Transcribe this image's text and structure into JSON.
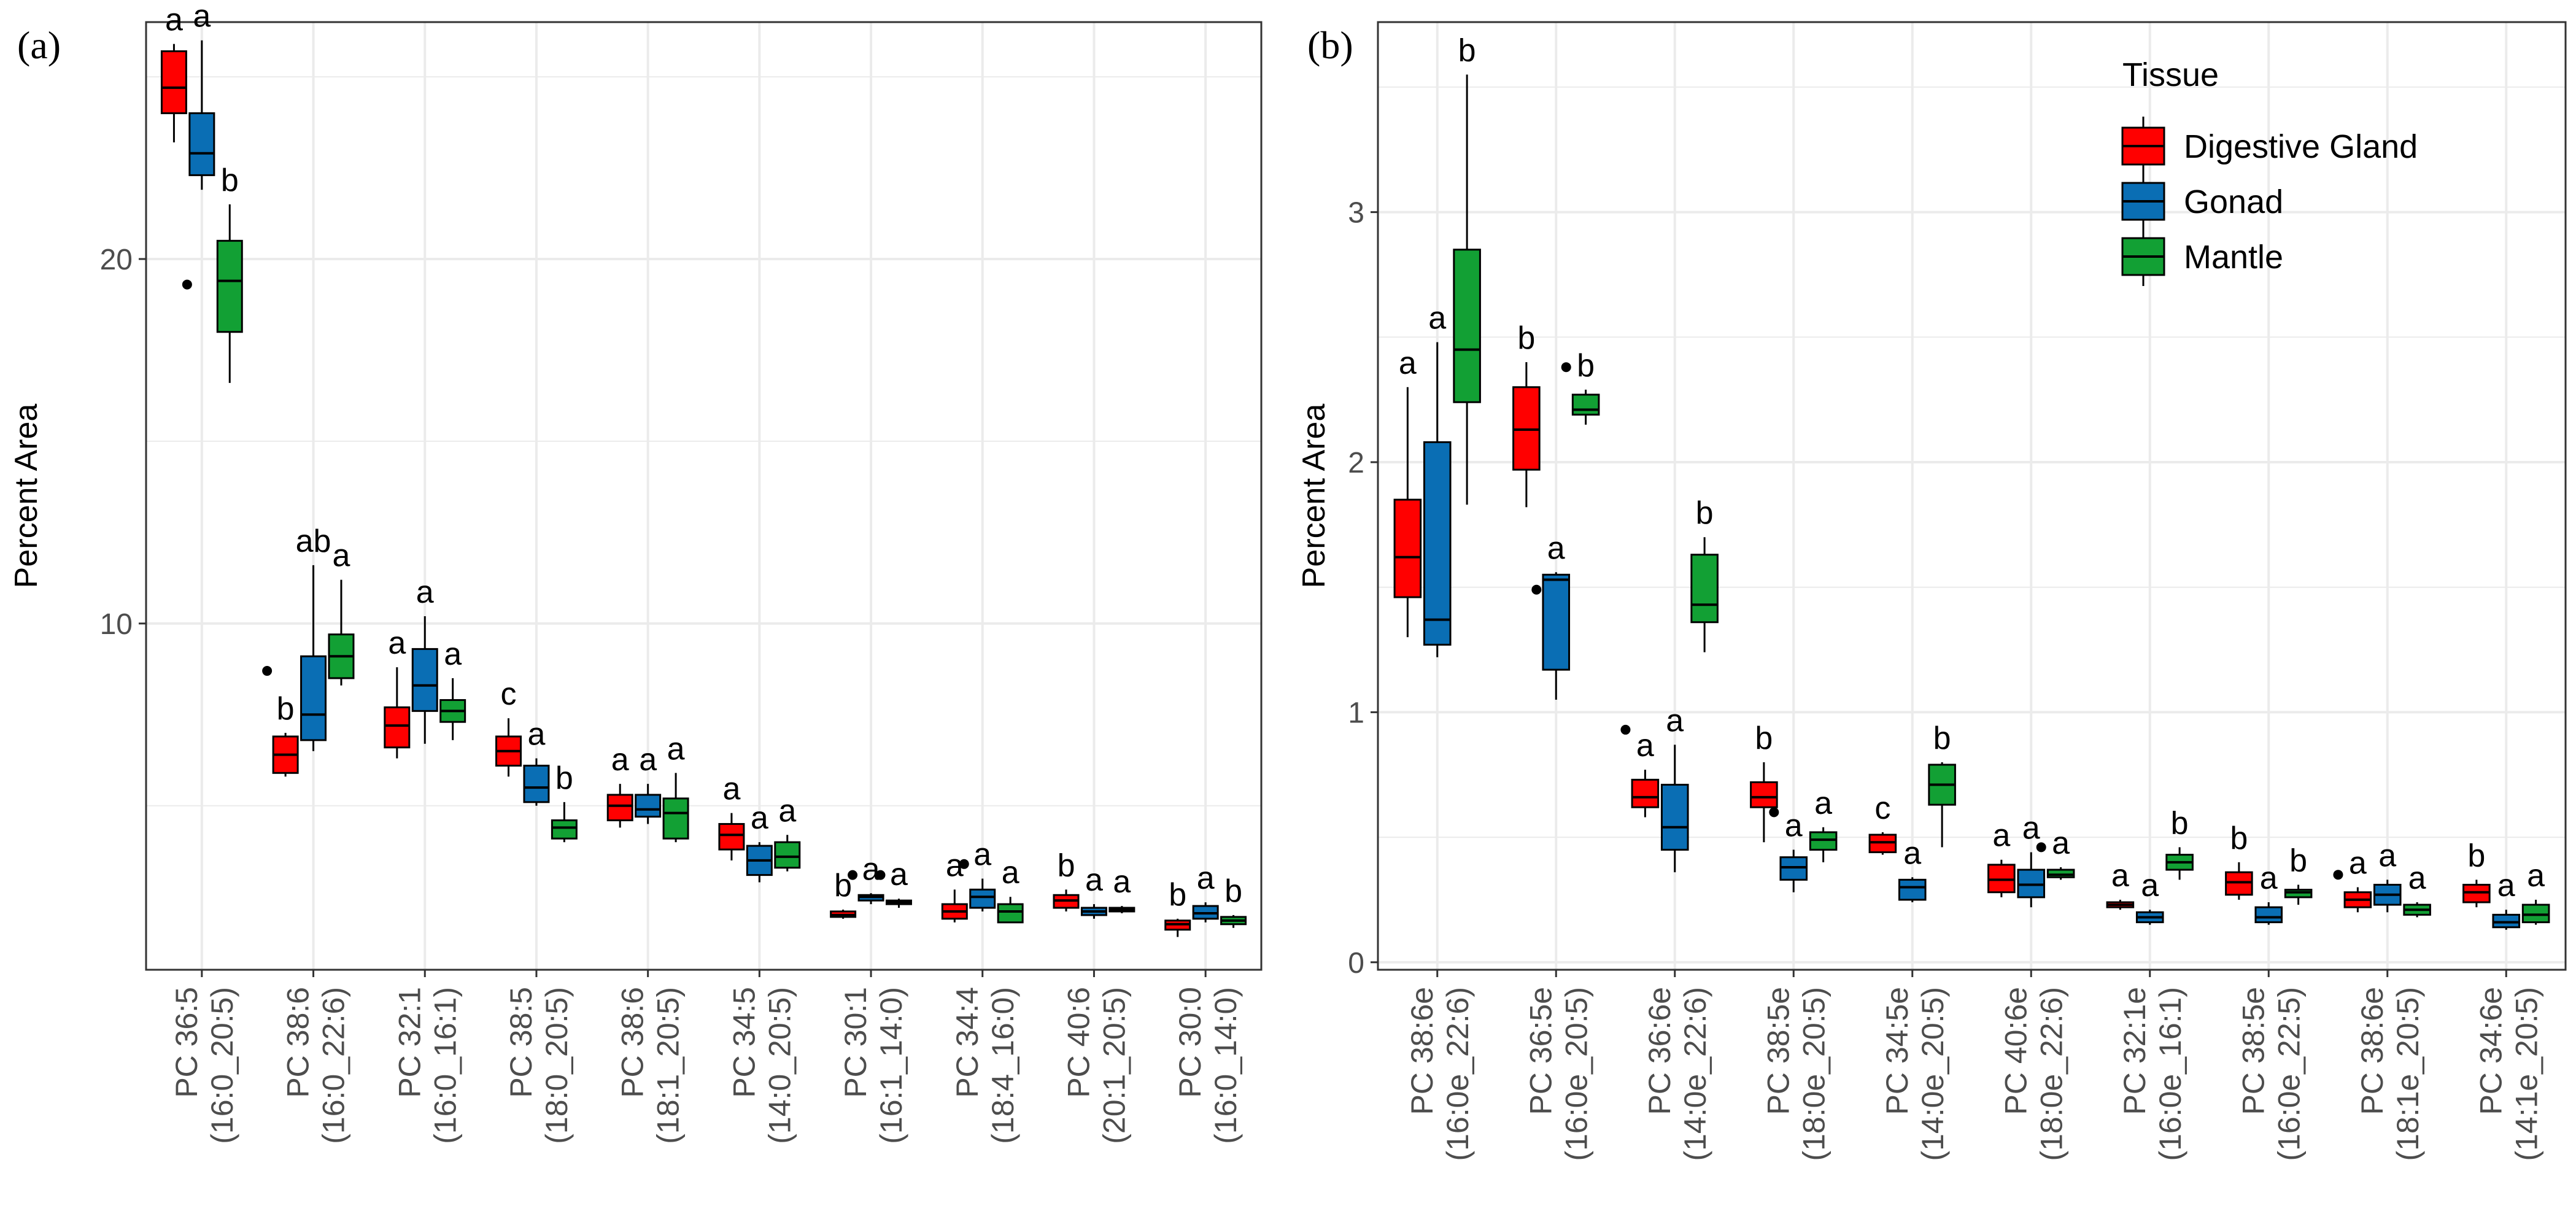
{
  "chart_data": [
    {
      "panel": "(a)",
      "type": "box",
      "ylabel": "Percent Area",
      "xlabel": "",
      "ylim": [
        0.5,
        26.5
      ],
      "yticks": [
        10,
        20
      ],
      "grid": true,
      "categories": [
        [
          "PC 36:5",
          "(16:0_20:5)"
        ],
        [
          "PC 38:6",
          "(16:0_22:6)"
        ],
        [
          "PC 32:1",
          "(16:0_16:1)"
        ],
        [
          "PC 38:5",
          "(18:0_20:5)"
        ],
        [
          "PC 38:6",
          "(18:1_20:5)"
        ],
        [
          "PC 34:5",
          "(14:0_20:5)"
        ],
        [
          "PC 30:1",
          "(16:1_14:0)"
        ],
        [
          "PC 34:4",
          "(18:4_16:0)"
        ],
        [
          "PC 40:6",
          "(20:1_20:5)"
        ],
        [
          "PC 30:0",
          "(16:0_14:0)"
        ]
      ],
      "series": [
        {
          "name": "Digestive Gland",
          "boxes": [
            {
              "min": 23.2,
              "q1": 24.0,
              "median": 24.7,
              "q3": 25.7,
              "max": 25.9,
              "outliers": [],
              "letter": "a"
            },
            {
              "min": 5.8,
              "q1": 5.9,
              "median": 6.4,
              "q3": 6.9,
              "max": 7.0,
              "outliers": [
                8.7
              ],
              "letter": "b"
            },
            {
              "min": 6.3,
              "q1": 6.6,
              "median": 7.2,
              "q3": 7.7,
              "max": 8.8,
              "outliers": [],
              "letter": "a"
            },
            {
              "min": 5.8,
              "q1": 6.1,
              "median": 6.5,
              "q3": 6.9,
              "max": 7.4,
              "outliers": [],
              "letter": "c"
            },
            {
              "min": 4.4,
              "q1": 4.6,
              "median": 5.0,
              "q3": 5.3,
              "max": 5.6,
              "outliers": [],
              "letter": "a"
            },
            {
              "min": 3.5,
              "q1": 3.8,
              "median": 4.2,
              "q3": 4.5,
              "max": 4.8,
              "outliers": [],
              "letter": "a"
            },
            {
              "min": 1.9,
              "q1": 1.95,
              "median": 2.0,
              "q3": 2.1,
              "max": 2.15,
              "outliers": [],
              "letter": "b"
            },
            {
              "min": 1.8,
              "q1": 1.9,
              "median": 2.1,
              "q3": 2.3,
              "max": 2.7,
              "outliers": [],
              "letter": "a"
            },
            {
              "min": 2.1,
              "q1": 2.2,
              "median": 2.4,
              "q3": 2.55,
              "max": 2.7,
              "outliers": [],
              "letter": "b"
            },
            {
              "min": 1.4,
              "q1": 1.6,
              "median": 1.75,
              "q3": 1.85,
              "max": 1.9,
              "outliers": [],
              "letter": "b"
            }
          ]
        },
        {
          "name": "Gonad",
          "boxes": [
            {
              "min": 21.9,
              "q1": 22.3,
              "median": 22.9,
              "q3": 24.0,
              "max": 26.0,
              "outliers": [
                19.3
              ],
              "letter": "a"
            },
            {
              "min": 6.5,
              "q1": 6.8,
              "median": 7.5,
              "q3": 9.1,
              "max": 11.6,
              "outliers": [],
              "letter": "ab"
            },
            {
              "min": 6.7,
              "q1": 7.6,
              "median": 8.3,
              "q3": 9.3,
              "max": 10.2,
              "outliers": [],
              "letter": "a"
            },
            {
              "min": 5.0,
              "q1": 5.1,
              "median": 5.5,
              "q3": 6.1,
              "max": 6.3,
              "outliers": [],
              "letter": "a"
            },
            {
              "min": 4.5,
              "q1": 4.7,
              "median": 4.9,
              "q3": 5.3,
              "max": 5.6,
              "outliers": [],
              "letter": "a"
            },
            {
              "min": 2.9,
              "q1": 3.1,
              "median": 3.5,
              "q3": 3.9,
              "max": 4.0,
              "outliers": [],
              "letter": "a"
            },
            {
              "min": 2.3,
              "q1": 2.4,
              "median": 2.5,
              "q3": 2.55,
              "max": 2.6,
              "outliers": [
                3.1
              ],
              "letter": "a"
            },
            {
              "min": 2.1,
              "q1": 2.2,
              "median": 2.5,
              "q3": 2.7,
              "max": 3.0,
              "outliers": [
                3.4
              ],
              "letter": "a"
            },
            {
              "min": 1.9,
              "q1": 2.0,
              "median": 2.1,
              "q3": 2.2,
              "max": 2.3,
              "outliers": [],
              "letter": "a"
            },
            {
              "min": 1.8,
              "q1": 1.9,
              "median": 2.05,
              "q3": 2.25,
              "max": 2.35,
              "outliers": [],
              "letter": "a"
            }
          ]
        },
        {
          "name": "Mantle",
          "boxes": [
            {
              "min": 16.6,
              "q1": 18.0,
              "median": 19.4,
              "q3": 20.5,
              "max": 21.5,
              "outliers": [],
              "letter": "b"
            },
            {
              "min": 8.3,
              "q1": 8.5,
              "median": 9.1,
              "q3": 9.7,
              "max": 11.2,
              "outliers": [],
              "letter": "a"
            },
            {
              "min": 6.8,
              "q1": 7.3,
              "median": 7.6,
              "q3": 7.9,
              "max": 8.5,
              "outliers": [],
              "letter": "a"
            },
            {
              "min": 4.0,
              "q1": 4.1,
              "median": 4.4,
              "q3": 4.6,
              "max": 5.1,
              "outliers": [],
              "letter": "b"
            },
            {
              "min": 4.0,
              "q1": 4.1,
              "median": 4.8,
              "q3": 5.2,
              "max": 5.9,
              "outliers": [],
              "letter": "a"
            },
            {
              "min": 3.2,
              "q1": 3.3,
              "median": 3.6,
              "q3": 4.0,
              "max": 4.2,
              "outliers": [],
              "letter": "a"
            },
            {
              "min": 2.2,
              "q1": 2.3,
              "median": 2.35,
              "q3": 2.4,
              "max": 2.45,
              "outliers": [
                3.1
              ],
              "letter": "a"
            },
            {
              "min": 1.8,
              "q1": 1.8,
              "median": 2.1,
              "q3": 2.3,
              "max": 2.5,
              "outliers": [],
              "letter": "a"
            },
            {
              "min": 2.05,
              "q1": 2.1,
              "median": 2.15,
              "q3": 2.2,
              "max": 2.25,
              "outliers": [],
              "letter": "a"
            },
            {
              "min": 1.65,
              "q1": 1.75,
              "median": 1.85,
              "q3": 1.95,
              "max": 2.0,
              "outliers": [],
              "letter": "b"
            }
          ]
        }
      ]
    },
    {
      "panel": "(b)",
      "type": "box",
      "ylabel": "Percent Area",
      "xlabel": "",
      "ylim": [
        -0.03,
        3.76
      ],
      "yticks": [
        0,
        1,
        2,
        3
      ],
      "grid": true,
      "legend": {
        "title": "Tissue",
        "position": "top-right"
      },
      "categories": [
        [
          "PC 38:6e",
          "(16:0e_22:6)"
        ],
        [
          "PC 36:5e",
          "(16:0e_20:5)"
        ],
        [
          "PC 36:6e",
          "(14:0e_22:6)"
        ],
        [
          "PC 38:5e",
          "(18:0e_20:5)"
        ],
        [
          "PC 34:5e",
          "(14:0e_20:5)"
        ],
        [
          "PC 40:6e",
          "(18:0e_22:6)"
        ],
        [
          "PC 32:1e",
          "(16:0e_16:1)"
        ],
        [
          "PC 38:5e",
          "(16:0e_22:5)"
        ],
        [
          "PC 38:6e",
          "(18:1e_20:5)"
        ],
        [
          "PC 34:6e",
          "(14:1e_20:5)"
        ]
      ],
      "series": [
        {
          "name": "Digestive Gland",
          "boxes": [
            {
              "min": 1.3,
              "q1": 1.46,
              "median": 1.62,
              "q3": 1.85,
              "max": 2.3,
              "outliers": [],
              "letter": "a"
            },
            {
              "min": 1.82,
              "q1": 1.97,
              "median": 2.13,
              "q3": 2.3,
              "max": 2.4,
              "outliers": [],
              "letter": "b"
            },
            {
              "min": 0.58,
              "q1": 0.62,
              "median": 0.66,
              "q3": 0.73,
              "max": 0.77,
              "outliers": [
                0.93
              ],
              "letter": "a"
            },
            {
              "min": 0.48,
              "q1": 0.62,
              "median": 0.66,
              "q3": 0.72,
              "max": 0.8,
              "outliers": [],
              "letter": "b"
            },
            {
              "min": 0.43,
              "q1": 0.44,
              "median": 0.48,
              "q3": 0.51,
              "max": 0.52,
              "outliers": [],
              "letter": "c"
            },
            {
              "min": 0.26,
              "q1": 0.28,
              "median": 0.33,
              "q3": 0.39,
              "max": 0.41,
              "outliers": [],
              "letter": "a"
            },
            {
              "min": 0.21,
              "q1": 0.22,
              "median": 0.23,
              "q3": 0.24,
              "max": 0.25,
              "outliers": [],
              "letter": "a"
            },
            {
              "min": 0.25,
              "q1": 0.27,
              "median": 0.32,
              "q3": 0.36,
              "max": 0.4,
              "outliers": [],
              "letter": "b"
            },
            {
              "min": 0.2,
              "q1": 0.22,
              "median": 0.25,
              "q3": 0.28,
              "max": 0.3,
              "outliers": [
                0.35
              ],
              "letter": "a"
            },
            {
              "min": 0.22,
              "q1": 0.24,
              "median": 0.28,
              "q3": 0.31,
              "max": 0.33,
              "outliers": [],
              "letter": "b"
            }
          ]
        },
        {
          "name": "Gonad",
          "boxes": [
            {
              "min": 1.22,
              "q1": 1.27,
              "median": 1.37,
              "q3": 2.08,
              "max": 2.48,
              "outliers": [],
              "letter": "a"
            },
            {
              "min": 1.05,
              "q1": 1.17,
              "median": 1.53,
              "q3": 1.55,
              "max": 1.56,
              "outliers": [
                1.49
              ],
              "letter": "a"
            },
            {
              "min": 0.36,
              "q1": 0.45,
              "median": 0.54,
              "q3": 0.71,
              "max": 0.87,
              "outliers": [],
              "letter": "a"
            },
            {
              "min": 0.28,
              "q1": 0.33,
              "median": 0.38,
              "q3": 0.42,
              "max": 0.45,
              "outliers": [
                0.6
              ],
              "letter": "a"
            },
            {
              "min": 0.24,
              "q1": 0.25,
              "median": 0.3,
              "q3": 0.33,
              "max": 0.34,
              "outliers": [],
              "letter": "a"
            },
            {
              "min": 0.22,
              "q1": 0.26,
              "median": 0.31,
              "q3": 0.37,
              "max": 0.44,
              "outliers": [],
              "letter": "a"
            },
            {
              "min": 0.15,
              "q1": 0.16,
              "median": 0.18,
              "q3": 0.2,
              "max": 0.21,
              "outliers": [],
              "letter": "a"
            },
            {
              "min": 0.15,
              "q1": 0.16,
              "median": 0.18,
              "q3": 0.22,
              "max": 0.24,
              "outliers": [],
              "letter": "a"
            },
            {
              "min": 0.2,
              "q1": 0.23,
              "median": 0.27,
              "q3": 0.31,
              "max": 0.33,
              "outliers": [],
              "letter": "a"
            },
            {
              "min": 0.13,
              "q1": 0.14,
              "median": 0.16,
              "q3": 0.19,
              "max": 0.21,
              "outliers": [],
              "letter": "a"
            }
          ]
        },
        {
          "name": "Mantle",
          "boxes": [
            {
              "min": 1.83,
              "q1": 2.24,
              "median": 2.45,
              "q3": 2.85,
              "max": 3.55,
              "outliers": [],
              "letter": "b"
            },
            {
              "min": 2.15,
              "q1": 2.19,
              "median": 2.21,
              "q3": 2.27,
              "max": 2.29,
              "outliers": [
                2.38
              ],
              "letter": "b"
            },
            {
              "min": 1.24,
              "q1": 1.36,
              "median": 1.43,
              "q3": 1.63,
              "max": 1.7,
              "outliers": [],
              "letter": "b"
            },
            {
              "min": 0.4,
              "q1": 0.45,
              "median": 0.49,
              "q3": 0.52,
              "max": 0.54,
              "outliers": [],
              "letter": "a"
            },
            {
              "min": 0.46,
              "q1": 0.63,
              "median": 0.71,
              "q3": 0.79,
              "max": 0.8,
              "outliers": [],
              "letter": "b"
            },
            {
              "min": 0.33,
              "q1": 0.34,
              "median": 0.35,
              "q3": 0.37,
              "max": 0.38,
              "outliers": [
                0.46
              ],
              "letter": "a"
            },
            {
              "min": 0.33,
              "q1": 0.37,
              "median": 0.4,
              "q3": 0.43,
              "max": 0.46,
              "outliers": [],
              "letter": "b"
            },
            {
              "min": 0.23,
              "q1": 0.26,
              "median": 0.28,
              "q3": 0.29,
              "max": 0.31,
              "outliers": [],
              "letter": "b"
            },
            {
              "min": 0.18,
              "q1": 0.19,
              "median": 0.21,
              "q3": 0.23,
              "max": 0.24,
              "outliers": [],
              "letter": "a"
            },
            {
              "min": 0.15,
              "q1": 0.16,
              "median": 0.19,
              "q3": 0.23,
              "max": 0.25,
              "outliers": [],
              "letter": "a"
            }
          ]
        }
      ]
    }
  ],
  "legend": {
    "title": "Tissue",
    "items": [
      {
        "label": "Digestive Gland",
        "color": "#ff0000"
      },
      {
        "label": "Gonad",
        "color": "#0a6eb4"
      },
      {
        "label": "Mantle",
        "color": "#12a034"
      }
    ]
  }
}
